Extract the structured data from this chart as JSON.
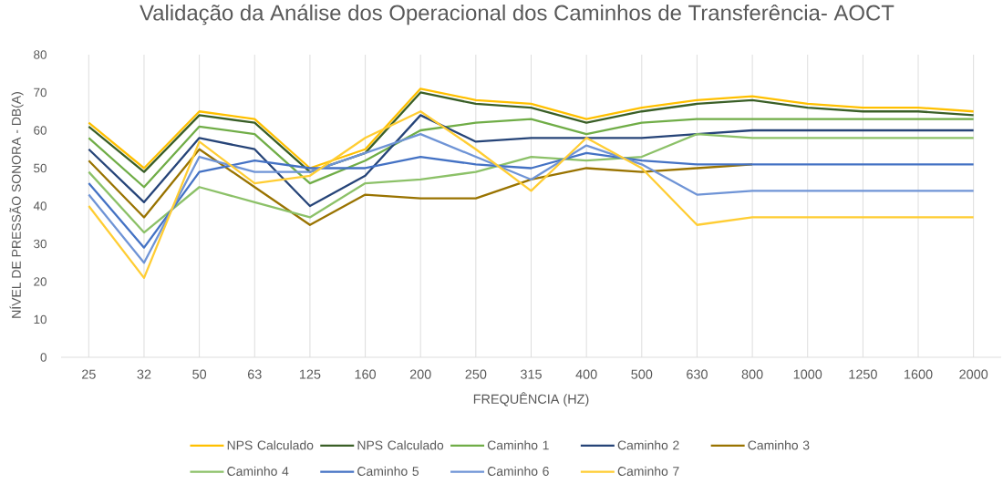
{
  "chart_data": {
    "type": "line",
    "title": "Validação da Análise dos Operacional dos Caminhos de Transferência- AOCT",
    "xlabel": "FREQUÊNCIA (HZ)",
    "ylabel": "NÍVEL DE PRESSÃO SONORA - DB(A)",
    "categories": [
      "25",
      "32",
      "50",
      "63",
      "125",
      "160",
      "200",
      "250",
      "315",
      "400",
      "500",
      "630",
      "800",
      "1000",
      "1250",
      "1600",
      "2000"
    ],
    "series": [
      {
        "name": "NPS Calculado",
        "color": "#ffc000",
        "values": [
          62,
          50,
          65,
          63,
          50,
          55,
          71,
          68,
          67,
          63,
          66,
          68,
          69,
          67,
          66,
          66,
          65
        ]
      },
      {
        "name": "NPS Calculado",
        "color": "#3a5f27",
        "values": [
          61,
          49,
          64,
          62,
          49,
          54,
          70,
          67,
          66,
          62,
          65,
          67,
          68,
          66,
          65,
          65,
          64
        ]
      },
      {
        "name": "Caminho 1",
        "color": "#70ad47",
        "values": [
          58,
          45,
          61,
          59,
          46,
          52,
          60,
          62,
          63,
          59,
          62,
          63,
          63,
          63,
          63,
          63,
          63
        ]
      },
      {
        "name": "Caminho 2",
        "color": "#264478",
        "values": [
          55,
          41,
          58,
          55,
          40,
          48,
          64,
          57,
          58,
          58,
          58,
          59,
          60,
          60,
          60,
          60,
          60
        ]
      },
      {
        "name": "Caminho 3",
        "color": "#997300",
        "values": [
          52,
          37,
          55,
          45,
          35,
          43,
          42,
          42,
          47,
          50,
          49,
          50,
          51,
          null,
          null,
          null,
          null
        ]
      },
      {
        "name": "Caminho 4",
        "color": "#8cc168",
        "values": [
          49,
          33,
          45,
          41,
          37,
          46,
          47,
          49,
          53,
          52,
          53,
          59,
          58,
          58,
          58,
          58,
          58
        ]
      },
      {
        "name": "Caminho 5",
        "color": "#4472c4",
        "values": [
          46,
          29,
          49,
          52,
          50,
          50,
          53,
          51,
          50,
          54,
          52,
          51,
          51,
          51,
          51,
          51,
          51
        ]
      },
      {
        "name": "Caminho 6",
        "color": "#6f94d6",
        "values": [
          43,
          25,
          53,
          49,
          49,
          54,
          59,
          53,
          47,
          56,
          51,
          43,
          44,
          44,
          44,
          44,
          44
        ]
      },
      {
        "name": "Caminho 7",
        "color": "#ffcd33",
        "values": [
          40,
          21,
          57,
          46,
          48,
          58,
          65,
          55,
          44,
          58,
          50,
          35,
          37,
          37,
          37,
          37,
          37
        ]
      }
    ],
    "ylim": [
      0,
      80
    ],
    "yticks": [
      0,
      10,
      20,
      30,
      40,
      50,
      60,
      70,
      80
    ],
    "grid": "x",
    "legend": "bottom"
  }
}
